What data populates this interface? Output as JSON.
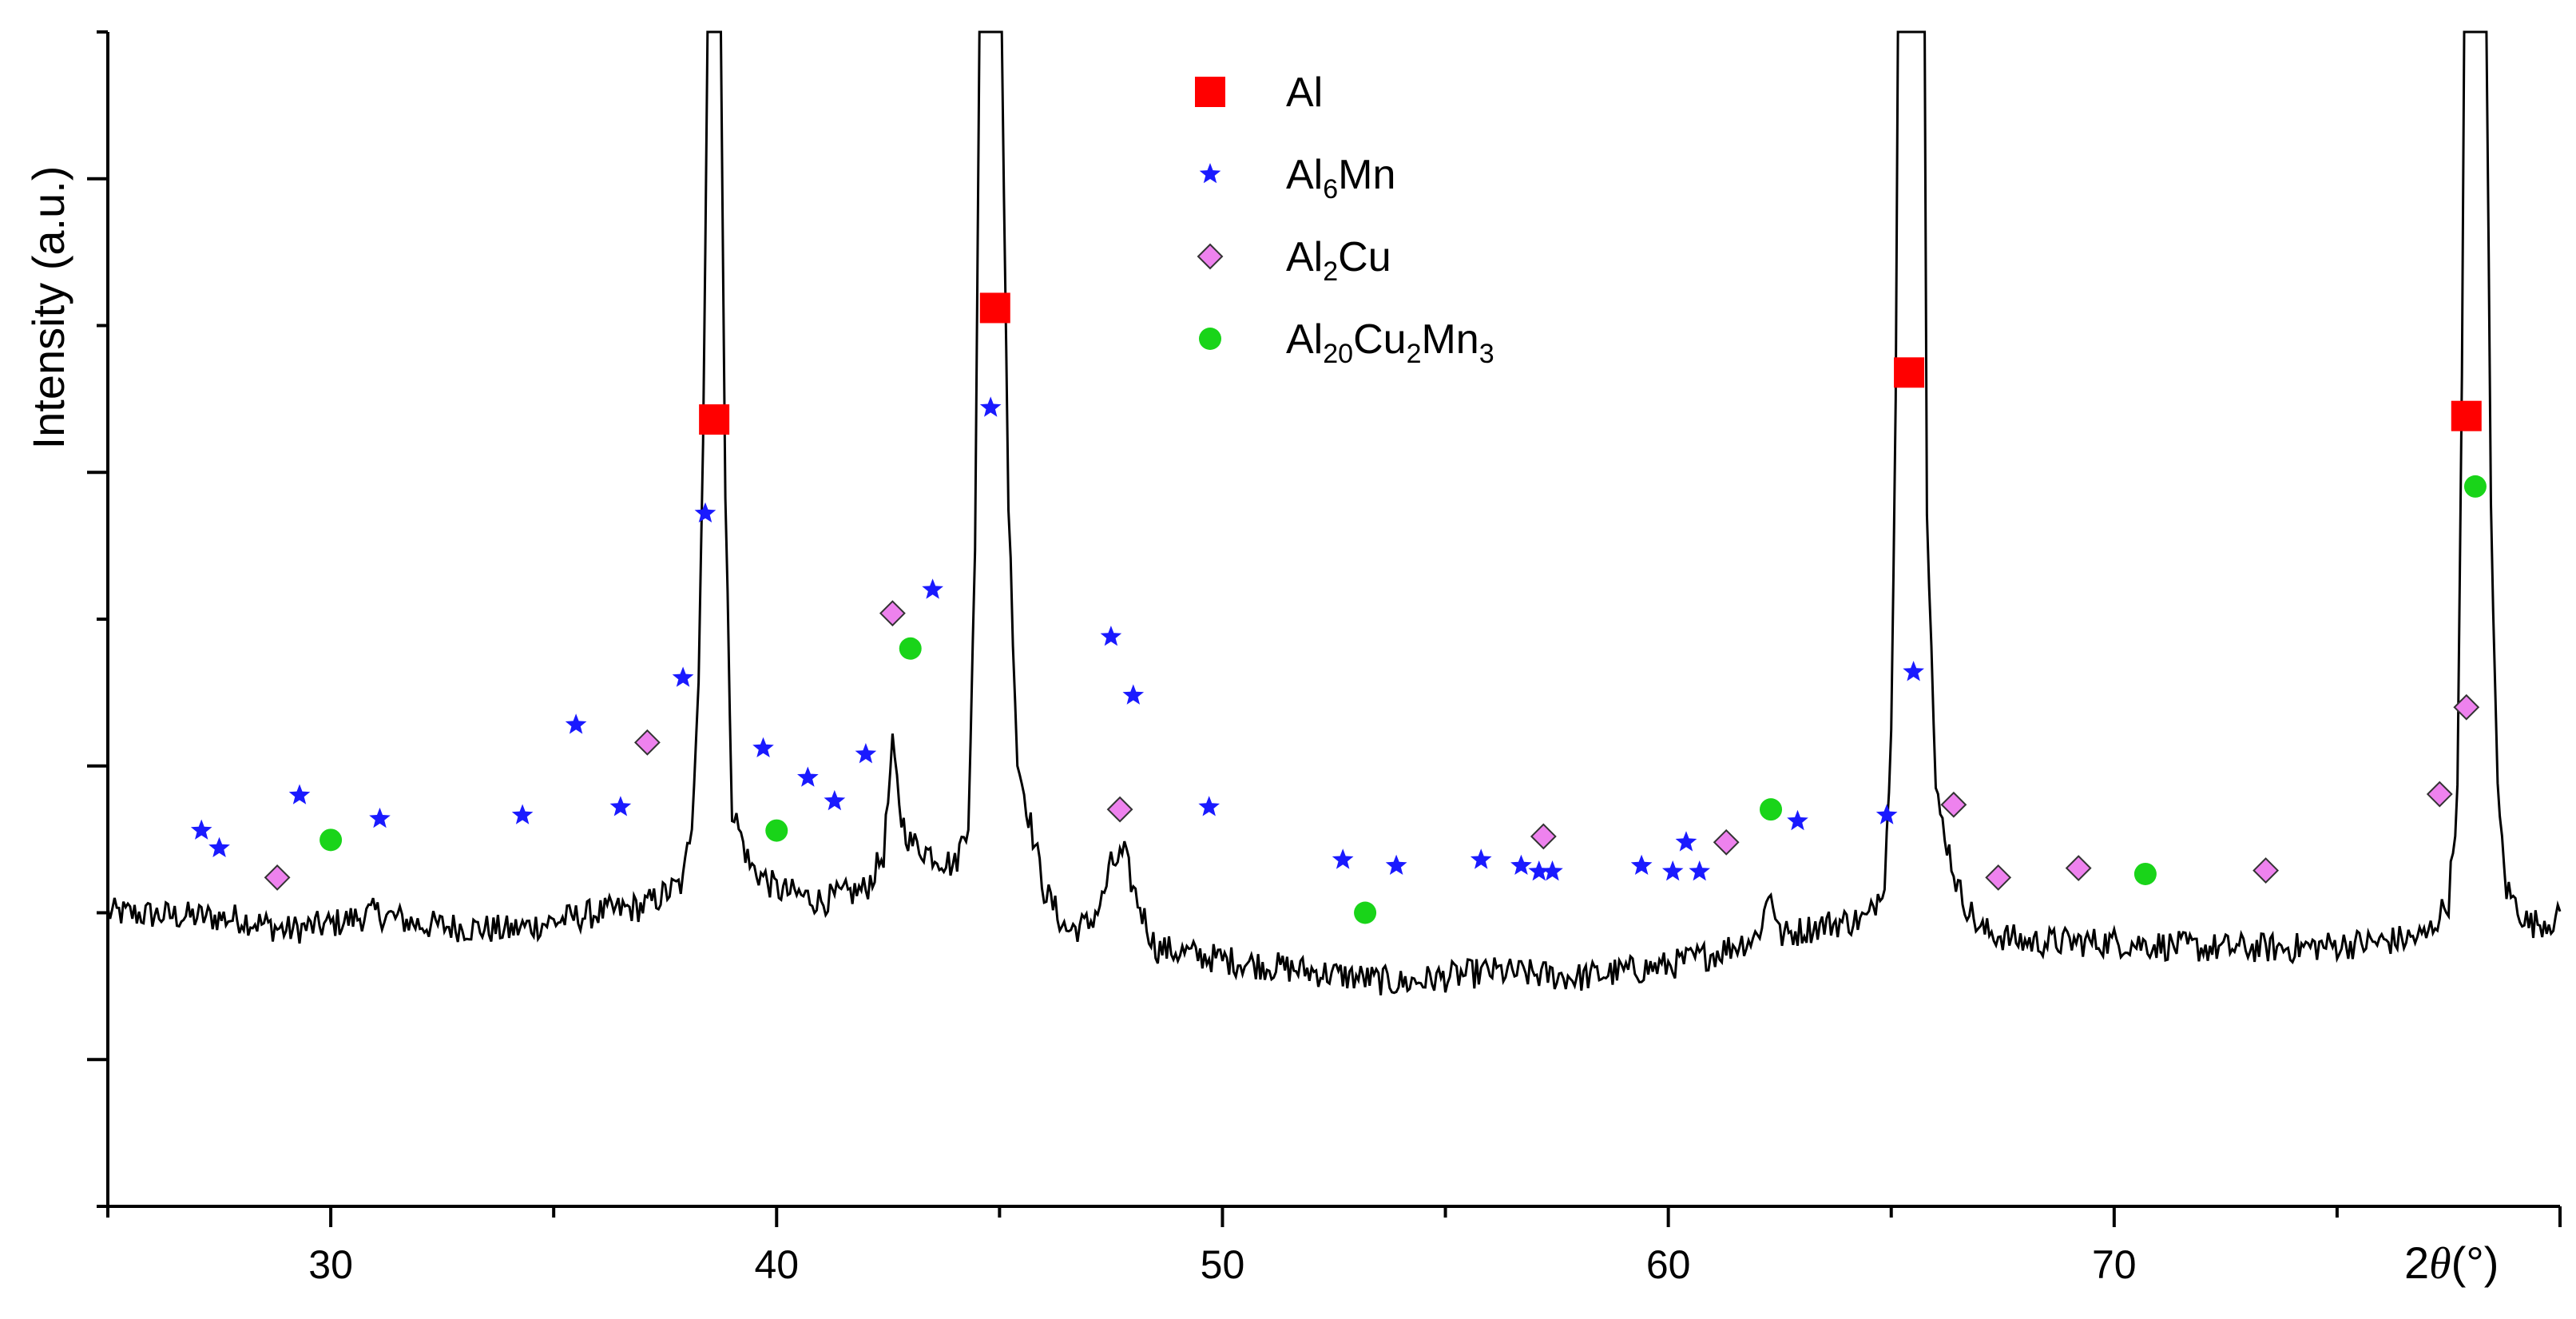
{
  "chart_data": {
    "type": "line",
    "title": "",
    "xlabel_prefix": "2",
    "xlabel_theta": "θ",
    "xlabel_unit": "(°)",
    "ylabel": "Intensity (a.u.)",
    "xlim": [
      25,
      80
    ],
    "ylim": [
      0,
      100
    ],
    "x_ticks": [
      30,
      40,
      50,
      60,
      70
    ],
    "grid": false,
    "legend_position": "top-center",
    "colors": {
      "line": "#000000",
      "Al": "#ff0000",
      "Al6Mn": "#1a1aff",
      "Al2Cu": "#ee82ee",
      "Al20Cu2Mn3": "#19d419"
    },
    "legend": [
      {
        "key": "Al",
        "parts": [
          [
            "Al",
            ""
          ]
        ],
        "symbol": "square",
        "icon": "square-marker-icon"
      },
      {
        "key": "Al6Mn",
        "parts": [
          [
            "Al",
            ""
          ],
          [
            "6",
            "sub"
          ],
          [
            "Mn",
            ""
          ]
        ],
        "symbol": "star",
        "icon": "star-marker-icon"
      },
      {
        "key": "Al2Cu",
        "parts": [
          [
            "Al",
            ""
          ],
          [
            "2",
            "sub"
          ],
          [
            "Cu",
            ""
          ]
        ],
        "symbol": "diamond",
        "icon": "diamond-marker-icon"
      },
      {
        "key": "Al20Cu2Mn3",
        "parts": [
          [
            "Al",
            ""
          ],
          [
            "20",
            "sub"
          ],
          [
            "Cu",
            ""
          ],
          [
            "2",
            "sub"
          ],
          [
            "Mn",
            ""
          ],
          [
            "3",
            "sub"
          ]
        ],
        "symbol": "circle",
        "icon": "circle-marker-icon"
      }
    ],
    "baseline": [
      [
        25,
        25
      ],
      [
        28,
        24.5
      ],
      [
        29,
        23.5
      ],
      [
        30,
        24
      ],
      [
        31,
        25
      ],
      [
        32,
        24
      ],
      [
        34,
        23.5
      ],
      [
        36,
        25
      ],
      [
        37,
        25.5
      ],
      [
        37.9,
        27.5
      ],
      [
        38.1,
        33
      ],
      [
        38.25,
        45
      ],
      [
        38.35,
        65
      ],
      [
        38.45,
        100
      ],
      [
        38.75,
        100
      ],
      [
        38.85,
        60
      ],
      [
        39,
        34
      ],
      [
        39.4,
        29
      ],
      [
        40,
        27
      ],
      [
        41,
        26
      ],
      [
        42,
        27
      ],
      [
        42.4,
        30
      ],
      [
        42.6,
        39
      ],
      [
        42.8,
        33
      ],
      [
        43,
        31
      ],
      [
        43.5,
        30
      ],
      [
        44,
        29
      ],
      [
        44.3,
        33
      ],
      [
        44.45,
        55
      ],
      [
        44.55,
        100
      ],
      [
        45.05,
        100
      ],
      [
        45.2,
        60
      ],
      [
        45.4,
        38
      ],
      [
        46,
        27
      ],
      [
        46.5,
        23.5
      ],
      [
        47,
        24
      ],
      [
        47.3,
        26
      ],
      [
        47.5,
        29
      ],
      [
        47.8,
        30
      ],
      [
        48,
        27
      ],
      [
        48.5,
        22
      ],
      [
        50,
        21
      ],
      [
        52,
        20
      ],
      [
        54,
        19
      ],
      [
        56,
        20
      ],
      [
        58,
        19.5
      ],
      [
        60,
        20.5
      ],
      [
        61,
        21.5
      ],
      [
        62,
        23
      ],
      [
        62.3,
        27
      ],
      [
        62.5,
        23
      ],
      [
        63.5,
        24
      ],
      [
        64.5,
        24.5
      ],
      [
        64.85,
        28
      ],
      [
        65,
        40
      ],
      [
        65.1,
        70
      ],
      [
        65.15,
        100
      ],
      [
        65.75,
        100
      ],
      [
        65.8,
        60
      ],
      [
        66,
        35
      ],
      [
        66.5,
        27
      ],
      [
        67,
        23.5
      ],
      [
        68,
        22.5
      ],
      [
        70,
        22.5
      ],
      [
        72,
        22
      ],
      [
        74,
        22
      ],
      [
        76,
        22.5
      ],
      [
        77,
        23
      ],
      [
        77.5,
        26
      ],
      [
        77.7,
        35
      ],
      [
        77.8,
        70
      ],
      [
        77.85,
        100
      ],
      [
        78.35,
        100
      ],
      [
        78.45,
        60
      ],
      [
        78.6,
        35
      ],
      [
        78.8,
        27
      ],
      [
        79.3,
        24
      ],
      [
        80,
        24.5
      ]
    ],
    "series": [
      {
        "name": "Al",
        "points": [
          [
            38.6,
            67
          ],
          [
            44.9,
            76.5
          ],
          [
            65.4,
            71
          ],
          [
            77.9,
            67.3
          ]
        ]
      },
      {
        "name": "Al6Mn",
        "points": [
          [
            27.1,
            32
          ],
          [
            27.5,
            30.5
          ],
          [
            29.3,
            35
          ],
          [
            31.1,
            33
          ],
          [
            34.3,
            33.3
          ],
          [
            35.5,
            41
          ],
          [
            36.5,
            34
          ],
          [
            37.9,
            45
          ],
          [
            38.4,
            59
          ],
          [
            39.7,
            39
          ],
          [
            40.7,
            36.5
          ],
          [
            41.3,
            34.5
          ],
          [
            42,
            38.5
          ],
          [
            43.5,
            52.5
          ],
          [
            44.8,
            68
          ],
          [
            47.5,
            48.5
          ],
          [
            48,
            43.5
          ],
          [
            49.7,
            34
          ],
          [
            52.7,
            29.5
          ],
          [
            53.9,
            29
          ],
          [
            55.8,
            29.5
          ],
          [
            56.7,
            29
          ],
          [
            57.1,
            28.5
          ],
          [
            57.4,
            28.5
          ],
          [
            59.4,
            29
          ],
          [
            60.1,
            28.5
          ],
          [
            60.4,
            31
          ],
          [
            60.7,
            28.5
          ],
          [
            62.9,
            32.8
          ],
          [
            64.9,
            33.3
          ],
          [
            65.5,
            45.5
          ]
        ]
      },
      {
        "name": "Al2Cu",
        "points": [
          [
            28.8,
            28
          ],
          [
            37.1,
            39.5
          ],
          [
            42.6,
            50.5
          ],
          [
            47.7,
            33.8
          ],
          [
            57.2,
            31.5
          ],
          [
            61.3,
            31
          ],
          [
            66.4,
            34.2
          ],
          [
            67.4,
            28
          ],
          [
            69.2,
            28.8
          ],
          [
            73.4,
            28.6
          ],
          [
            77.3,
            35.1
          ],
          [
            77.9,
            42.5
          ]
        ]
      },
      {
        "name": "Al20Cu2Mn3",
        "points": [
          [
            30,
            31.2
          ],
          [
            40,
            32
          ],
          [
            43,
            47.5
          ],
          [
            53.2,
            25
          ],
          [
            62.3,
            33.8
          ],
          [
            70.7,
            28.3
          ],
          [
            78.1,
            61.3
          ]
        ]
      }
    ]
  }
}
